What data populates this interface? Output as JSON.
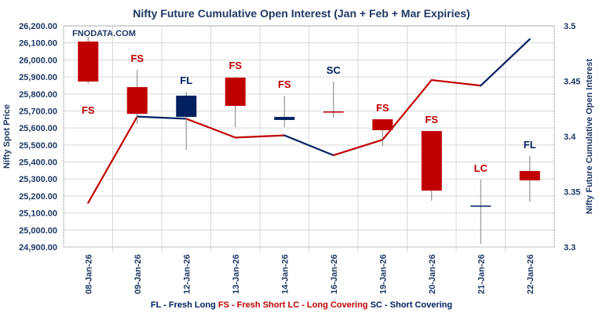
{
  "chart_data": {
    "type": "candlestick+line",
    "title": "Nifty Future Cumulative Open Interest (Jan  + Feb + Mar Expiries)",
    "watermark": "FNODATA.COM",
    "ylabel_left": "Nifty Spot Price",
    "ylabel_right": "Nifty Future Cumulative Open Interest",
    "ylim_left": [
      24900,
      26200
    ],
    "ylim_right": [
      3.3,
      3.5
    ],
    "left_ticks": [
      "26,200.00",
      "26,100.00",
      "26,000.00",
      "25,900.00",
      "25,800.00",
      "25,700.00",
      "25,600.00",
      "25,500.00",
      "25,400.00",
      "25,300.00",
      "25,200.00",
      "25,100.00",
      "25,000.00",
      "24,900.00"
    ],
    "right_ticks": [
      "3.5",
      "3.45",
      "3.4",
      "3.35",
      "3.3"
    ],
    "grid": true,
    "categories": [
      "08-Jan-26",
      "09-Jan-26",
      "12-Jan-26",
      "13-Jan-26",
      "14-Jan-26",
      "16-Jan-26",
      "19-Jan-26",
      "20-Jan-26",
      "21-Jan-26",
      "22-Jan-26"
    ],
    "candles": [
      {
        "open": 26108,
        "high": 26135,
        "low": 25860,
        "close": 25873,
        "label": "FS"
      },
      {
        "open": 25840,
        "high": 25942,
        "low": 25624,
        "close": 25683,
        "label": "FS"
      },
      {
        "open": 25665,
        "high": 25812,
        "low": 25472,
        "close": 25790,
        "label": "FL"
      },
      {
        "open": 25896,
        "high": 25900,
        "low": 25605,
        "close": 25730,
        "label": "FS"
      },
      {
        "open": 25647,
        "high": 25790,
        "low": 25605,
        "close": 25665,
        "label": "FS"
      },
      {
        "open": 25697,
        "high": 25873,
        "low": 25660,
        "close": 25697,
        "label": "SC"
      },
      {
        "open": 25651,
        "high": 25651,
        "low": 25495,
        "close": 25587,
        "label": "FS"
      },
      {
        "open": 25582,
        "high": 25582,
        "low": 25172,
        "close": 25232,
        "label": "FS"
      },
      {
        "open": 25144,
        "high": 25296,
        "low": 24918,
        "close": 25144,
        "label": "LC"
      },
      {
        "open": 25347,
        "high": 25435,
        "low": 25167,
        "close": 25292,
        "label": "FL"
      }
    ],
    "doji_colors": {
      "14-Jan-26": "#002060",
      "16-Jan-26": "#c00000",
      "21-Jan-26": "#002060"
    },
    "open_interest": [
      3.34,
      3.418,
      3.416,
      3.399,
      3.401,
      3.383,
      3.397,
      3.451,
      3.446,
      3.488
    ],
    "label_colors": {
      "FL": "#002060",
      "FS": "#c00000",
      "LC": "#c00000",
      "SC": "#002060"
    },
    "legend": [
      {
        "text": "FL - Fresh Long",
        "color": "#002060"
      },
      {
        "text": "FS - Fresh Short",
        "color": "#c00000"
      },
      {
        "text": "LC - Long Covering",
        "color": "#c00000"
      },
      {
        "text": "SC - Short Covering",
        "color": "#002060"
      }
    ],
    "legend_position": "bottom",
    "colors": {
      "bear": "#c00000",
      "bull": "#002060",
      "axis_text": "#1f3864",
      "wick": "#7f7f7f"
    }
  }
}
